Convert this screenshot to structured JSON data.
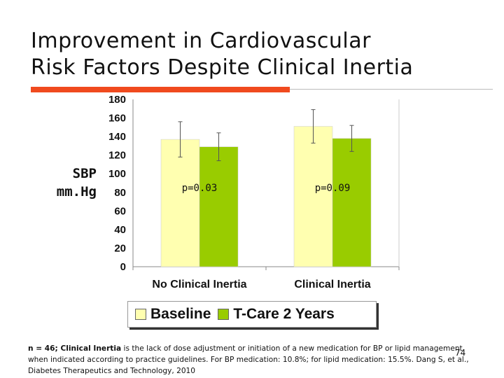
{
  "slide": {
    "title_line1": "Improvement in Cardiovascular",
    "title_line2": "Risk Factors Despite Clinical Inertia",
    "page_number": "74"
  },
  "footnote": {
    "lead": "n = 46; Clinical Inertia",
    "body": " is the lack of dose adjustment or initiation of a new medication for BP or lipid management when indicated according to practice guidelines. For BP medication: 10.8%; for lipid medication: 15.5%. Dang S, et al., Diabetes Therapeutics and Technology, 2010"
  },
  "chart_data": {
    "type": "bar",
    "ylabel_line1": "SBP",
    "ylabel_line2": "mm.Hg",
    "ylim": [
      0,
      180
    ],
    "yticks": [
      0,
      20,
      40,
      60,
      80,
      100,
      120,
      140,
      160,
      180
    ],
    "categories": [
      "No Clinical Inertia",
      "Clinical Inertia"
    ],
    "series": [
      {
        "name": "Baseline",
        "values": [
          137,
          151
        ],
        "error": [
          19,
          18
        ],
        "color": "#ffffb0"
      },
      {
        "name": "T-Care 2 Years",
        "values": [
          129,
          138
        ],
        "error": [
          15,
          14
        ],
        "color": "#99cc00"
      }
    ],
    "annotations": [
      "p=0.03",
      "p=0.09"
    ],
    "grid": false,
    "legend_position": "bottom"
  }
}
